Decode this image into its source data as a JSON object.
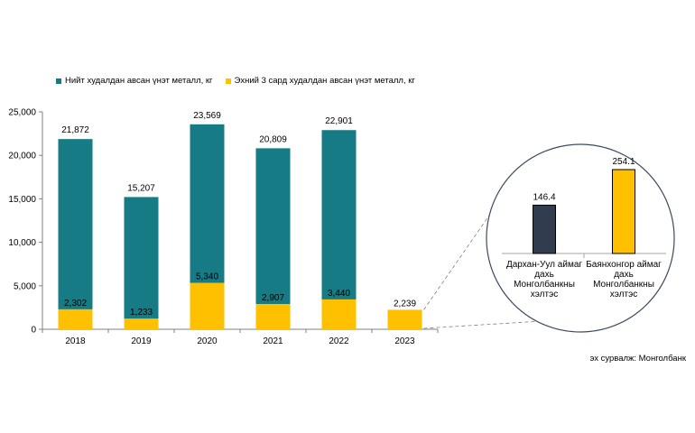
{
  "chart_data": [
    {
      "type": "bar",
      "categories": [
        "2018",
        "2019",
        "2020",
        "2021",
        "2022",
        "2023"
      ],
      "series": [
        {
          "name": "Нийт худалдан авсан үнэт металл, кг",
          "values": [
            21872,
            15207,
            23569,
            20809,
            22901,
            null
          ],
          "labels": [
            "21,872",
            "15,207",
            "23,569",
            "20,809",
            "22,901",
            ""
          ]
        },
        {
          "name": "Эхний 3 сард худалдан авсан үнэт металл, кг",
          "values": [
            2302,
            1233,
            5340,
            2907,
            3440,
            2239
          ],
          "labels": [
            "2,302",
            "1,233",
            "5,340",
            "2,907",
            "3,440",
            "2,239"
          ]
        }
      ],
      "yticks": [
        "0",
        "5,000",
        "10,000",
        "15,000",
        "20,000",
        "25,000"
      ],
      "ylim": [
        0,
        25000
      ],
      "legend_position": "top-left",
      "grid": false
    },
    {
      "type": "bar",
      "categories": [
        "Дархан-Уул аймаг дахь Монголбанкны хэлтэс",
        "Баянхонгор аймаг дахь Монголбанкны хэлтэс"
      ],
      "category_lines": [
        [
          "Дархан-Уул аймаг",
          "дахь",
          "Монголбанкны",
          "хэлтэс"
        ],
        [
          "Баянхонгор аймаг",
          "дахь",
          "Монголбанкны",
          "хэлтэс"
        ]
      ],
      "values": [
        146.4,
        254.1
      ],
      "labels": [
        "146.4",
        "254.1"
      ],
      "ylim": [
        0,
        254.1
      ]
    }
  ],
  "colors": {
    "total": "#167b84",
    "q1": "#ffc000",
    "darkhan": "#323c4f",
    "bayankhongor": "#ffc000",
    "axis": "#808080"
  },
  "source": "эх сурвалж: Монголбанк"
}
